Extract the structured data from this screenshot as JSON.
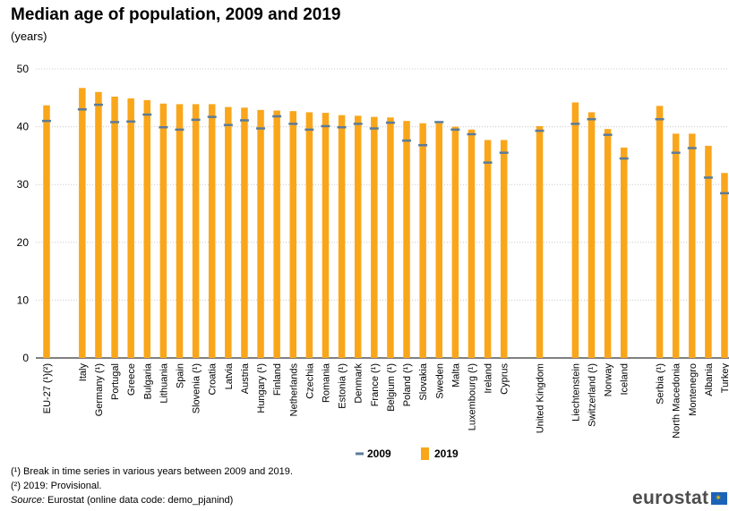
{
  "header": {
    "title": "Median age of population, 2009 and 2019",
    "subtitle": "(years)"
  },
  "chart_data": {
    "type": "bar",
    "ylim": [
      0,
      50
    ],
    "yticks": [
      0,
      10,
      20,
      30,
      40,
      50
    ],
    "grid": true,
    "legend_position": "bottom",
    "categories": [
      "EU-27 (¹)(²)",
      "Italy",
      "Germany (¹)",
      "Portugal",
      "Greece",
      "Bulgaria",
      "Lithuania",
      "Spain",
      "Slovenia (¹)",
      "Croatia",
      "Latvia",
      "Austria",
      "Hungary (¹)",
      "Finland",
      "Netherlands",
      "Czechia",
      "Romania",
      "Estonia (¹)",
      "Denmark",
      "France (¹)",
      "Belgium (¹)",
      "Poland (¹)",
      "Slovakia",
      "Sweden",
      "Malta",
      "Luxembourg (¹)",
      "Ireland",
      "Cyprus",
      "United Kingdom",
      "Liechtenstein",
      "Switzerland (¹)",
      "Norway",
      "Iceland",
      "Serbia (¹)",
      "North Macedonia",
      "Montenegro",
      "Albania",
      "Turkey"
    ],
    "group_starts": [
      0,
      1,
      28,
      29,
      33
    ],
    "series": [
      {
        "name": "2009",
        "marker": "dash",
        "color": "#5b7c99",
        "values": [
          41.0,
          43.0,
          43.8,
          40.8,
          40.9,
          42.1,
          39.9,
          39.5,
          41.2,
          41.7,
          40.3,
          41.1,
          39.7,
          41.8,
          40.5,
          39.5,
          40.1,
          39.9,
          40.5,
          39.7,
          40.7,
          37.6,
          36.8,
          40.8,
          39.5,
          38.7,
          33.8,
          35.5,
          39.3,
          40.5,
          41.3,
          38.6,
          34.5,
          41.3,
          35.5,
          36.3,
          31.2,
          28.5
        ]
      },
      {
        "name": "2019",
        "marker": "bar",
        "color": "#faa61a",
        "values": [
          43.7,
          46.7,
          46.0,
          45.2,
          44.9,
          44.6,
          44.0,
          43.9,
          43.9,
          43.9,
          43.4,
          43.3,
          42.9,
          42.8,
          42.7,
          42.5,
          42.4,
          42.0,
          41.9,
          41.7,
          41.6,
          41.0,
          40.6,
          40.6,
          40.0,
          39.5,
          37.7,
          37.7,
          40.1,
          44.2,
          42.5,
          39.6,
          36.4,
          43.6,
          38.8,
          38.8,
          36.7,
          32.0
        ]
      }
    ]
  },
  "footnotes": {
    "note1": "(¹) Break in time series in various years between 2009 and 2019.",
    "note2": "(²) 2019: Provisional.",
    "source_label": "Source:",
    "source_text": " Eurostat (online data code: demo_pjanind)"
  },
  "logo": {
    "text": "eurostat"
  }
}
